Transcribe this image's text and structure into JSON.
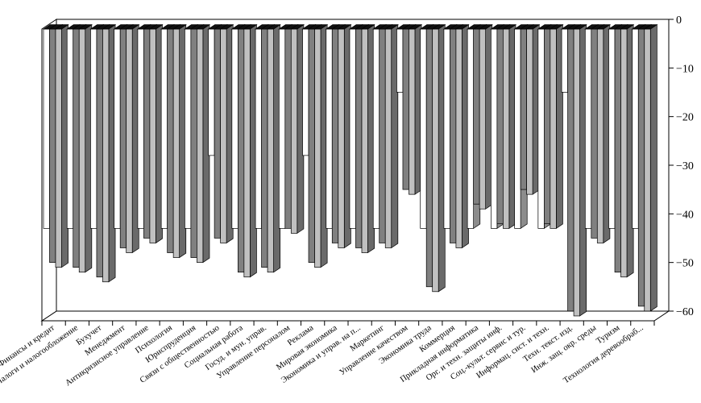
{
  "chart_data": {
    "type": "bar",
    "style": "3d-clustered-column",
    "title": "",
    "xlabel": "",
    "ylabel": "",
    "ylim": [
      -60,
      0
    ],
    "yticks": [
      0,
      -10,
      -20,
      -30,
      -40,
      -50,
      -60
    ],
    "grid": false,
    "legend": "none",
    "categories": [
      "Финансы и кредит",
      "Налоги и налогообложение",
      "Бухучет",
      "Менеджмент",
      "Антикризисное управление",
      "Психология",
      "Юриспруденция",
      "Связи с общественностью",
      "Социальная работа",
      "Госуд. и мун. управ.",
      "Управление персоналом",
      "Реклама",
      "Мировая экономика",
      "Экономика и управ. на п...",
      "Маркетинг",
      "Управление качеством",
      "Экономика труда",
      "Коммерция",
      "Прикладная информатика",
      "Орг. и техн. защиты инф.",
      "Соц.-культ. сервис и тур.",
      "Информац. сист. и техн.",
      "Техн. текст. изд.",
      "Инж. защ. окр. среды",
      "Туризм",
      "Технология деревообраб..."
    ],
    "series": [
      {
        "name": "series-1",
        "color": "#ffffff",
        "values": [
          -41,
          -41,
          -41,
          -41,
          -41,
          -41,
          -41,
          -26,
          -41,
          -41,
          -41,
          -26,
          -41,
          -41,
          -41,
          -13,
          -41,
          -41,
          -41,
          -41,
          -41,
          -41,
          -13,
          -41,
          -41,
          -41
        ]
      },
      {
        "name": "series-2",
        "color": "#808080",
        "values": [
          -48,
          -49,
          -51,
          -45,
          -43,
          -46,
          -47,
          -43,
          -50,
          -49,
          -41,
          -48,
          -44,
          -45,
          -44,
          -33,
          -53,
          -44,
          -36,
          -40,
          -33,
          -40,
          -58,
          -43,
          -50,
          -57
        ]
      },
      {
        "name": "series-3",
        "color": "#c0c0c0",
        "values": [
          -49,
          -50,
          -52,
          -46,
          -44,
          -47,
          -48,
          -44,
          -51,
          -50,
          -42,
          -49,
          -45,
          -46,
          -45,
          -34,
          -54,
          -45,
          -37,
          -41,
          -34,
          -41,
          -59,
          -44,
          -51,
          -58
        ]
      }
    ]
  }
}
